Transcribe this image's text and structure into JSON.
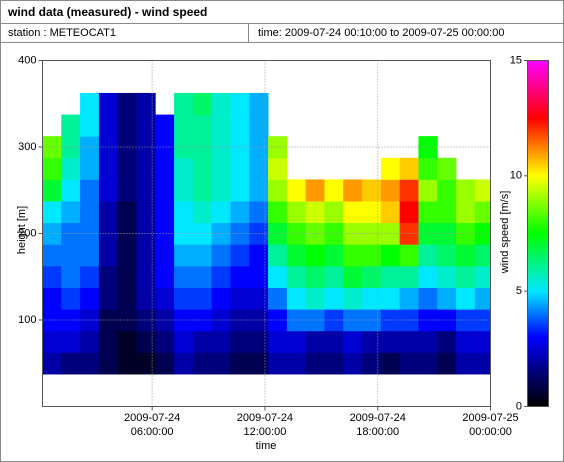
{
  "chart_data": {
    "type": "heatmap",
    "title": "wind data (measured) - wind speed",
    "station": "station : METEOCAT1",
    "time_range": "time: 2009-07-24 00:10:00 to 2009-07-25 00:00:00",
    "xlabel": "time",
    "ylabel": "height [m]",
    "colorbar_label": "wind speed [m/s]",
    "xlim": [
      "2009-07-24 00:10:00",
      "2009-07-25 00:00:00"
    ],
    "xticks": [
      {
        "value": "2009-07-24 06:00:00",
        "label": [
          "2009-07-24",
          "06:00:00"
        ]
      },
      {
        "value": "2009-07-24 12:00:00",
        "label": [
          "2009-07-24",
          "12:00:00"
        ]
      },
      {
        "value": "2009-07-24 18:00:00",
        "label": [
          "2009-07-24",
          "18:00:00"
        ]
      },
      {
        "value": "2009-07-25 00:00:00",
        "label": [
          "2009-07-25",
          "00:00:00"
        ]
      }
    ],
    "ylim": [
      0,
      400
    ],
    "yticks": [
      100,
      200,
      300,
      400
    ],
    "clim": [
      0,
      15
    ],
    "cticks": [
      0,
      5,
      10,
      15
    ],
    "grid": true,
    "colorscale": [
      [
        0,
        "#000000"
      ],
      [
        1.5,
        "#00007a"
      ],
      [
        3,
        "#0000ff"
      ],
      [
        5,
        "#00e8ff"
      ],
      [
        7.5,
        "#00ff00"
      ],
      [
        10,
        "#ffff00"
      ],
      [
        12.5,
        "#ff0000"
      ],
      [
        15,
        "#ff00ff"
      ]
    ],
    "x": [
      "2009-07-24 00:10:00",
      "2009-07-24 01:10:00",
      "2009-07-24 02:10:00",
      "2009-07-24 03:10:00",
      "2009-07-24 04:10:00",
      "2009-07-24 05:10:00",
      "2009-07-24 06:10:00",
      "2009-07-24 07:10:00",
      "2009-07-24 08:10:00",
      "2009-07-24 09:10:00",
      "2009-07-24 10:10:00",
      "2009-07-24 11:10:00",
      "2009-07-24 12:10:00",
      "2009-07-24 13:10:00",
      "2009-07-24 14:10:00",
      "2009-07-24 15:10:00",
      "2009-07-24 16:10:00",
      "2009-07-24 17:10:00",
      "2009-07-24 18:10:00",
      "2009-07-24 19:10:00",
      "2009-07-24 20:10:00",
      "2009-07-24 21:10:00",
      "2009-07-24 22:10:00",
      "2009-07-24 23:10:00"
    ],
    "y": [
      50,
      75,
      100,
      125,
      150,
      175,
      200,
      225,
      250,
      275,
      300,
      325,
      350
    ],
    "z": [
      [
        2,
        1.5,
        1.5,
        1,
        0.5,
        0.5,
        1,
        2,
        1.5,
        1.5,
        1,
        1,
        2,
        2,
        1.5,
        1.5,
        2,
        1.5,
        1,
        1.5,
        1.5,
        1,
        2,
        2
      ],
      [
        2.5,
        2.5,
        2,
        1,
        0.5,
        1,
        1.5,
        2.5,
        2,
        2,
        1.5,
        1.5,
        2.5,
        2.5,
        2,
        2,
        2.5,
        2,
        2,
        2,
        2,
        1.5,
        2.5,
        2.5
      ],
      [
        3,
        3,
        2.5,
        1,
        1,
        1.5,
        2,
        3,
        3,
        2.5,
        2,
        2,
        3,
        4,
        4,
        3.5,
        4,
        4,
        3.5,
        3.5,
        3,
        3,
        3.5,
        3.5
      ],
      [
        3,
        3.5,
        3,
        1.5,
        1,
        2,
        2.5,
        3.5,
        3.5,
        3,
        2.5,
        2.5,
        4,
        5,
        5.5,
        5,
        5.5,
        5,
        5,
        4.5,
        4,
        4.5,
        5,
        4.5
      ],
      [
        3.5,
        4,
        3.5,
        1.5,
        1,
        2,
        3,
        4,
        4,
        3.5,
        3,
        3,
        5,
        6,
        6.5,
        6,
        7,
        6.5,
        6,
        6,
        5,
        5.5,
        6,
        5.5
      ],
      [
        4,
        4,
        4,
        2,
        1,
        2,
        3,
        4.5,
        4.5,
        4,
        3.5,
        3,
        6,
        7,
        7.5,
        7,
        8,
        8,
        7.5,
        8,
        6,
        6.5,
        7,
        6.5
      ],
      [
        4.5,
        4,
        4,
        2,
        1,
        2,
        3,
        5,
        5,
        4.5,
        4,
        3.5,
        7,
        8,
        8.5,
        8,
        9,
        9,
        9,
        12,
        7,
        7,
        8,
        7.5
      ],
      [
        5,
        4.5,
        4,
        2,
        1,
        2,
        3,
        5,
        5.5,
        5,
        4.5,
        4,
        8,
        9,
        9.5,
        9,
        10,
        10,
        10.5,
        12.5,
        8,
        8,
        9,
        8.5
      ],
      [
        7,
        5,
        4,
        2.5,
        1.5,
        2,
        3,
        5.5,
        6,
        5.5,
        5,
        4.5,
        9,
        10,
        11,
        10,
        11,
        10.5,
        11,
        12,
        9,
        8,
        9,
        9.5
      ],
      [
        8,
        5.5,
        4.5,
        2.5,
        1.5,
        2,
        3,
        5.5,
        6,
        5.5,
        5,
        4.5,
        9.5,
        null,
        null,
        null,
        null,
        null,
        10,
        10.5,
        8,
        8.5,
        null,
        null
      ],
      [
        8.5,
        6,
        4.5,
        2.5,
        1.5,
        2,
        3,
        6,
        6,
        5.5,
        5,
        4.5,
        9,
        null,
        null,
        null,
        null,
        null,
        null,
        null,
        7.5,
        null,
        null,
        null
      ],
      [
        null,
        6,
        5,
        2.5,
        1.5,
        2,
        3,
        6,
        6,
        5.5,
        5,
        4.5,
        null,
        null,
        null,
        null,
        null,
        null,
        null,
        null,
        null,
        null,
        null,
        null
      ],
      [
        null,
        null,
        5,
        2.5,
        1.5,
        2,
        null,
        6,
        6.5,
        5.5,
        5,
        4.5,
        null,
        null,
        null,
        null,
        null,
        null,
        null,
        null,
        null,
        null,
        null,
        null
      ]
    ]
  }
}
